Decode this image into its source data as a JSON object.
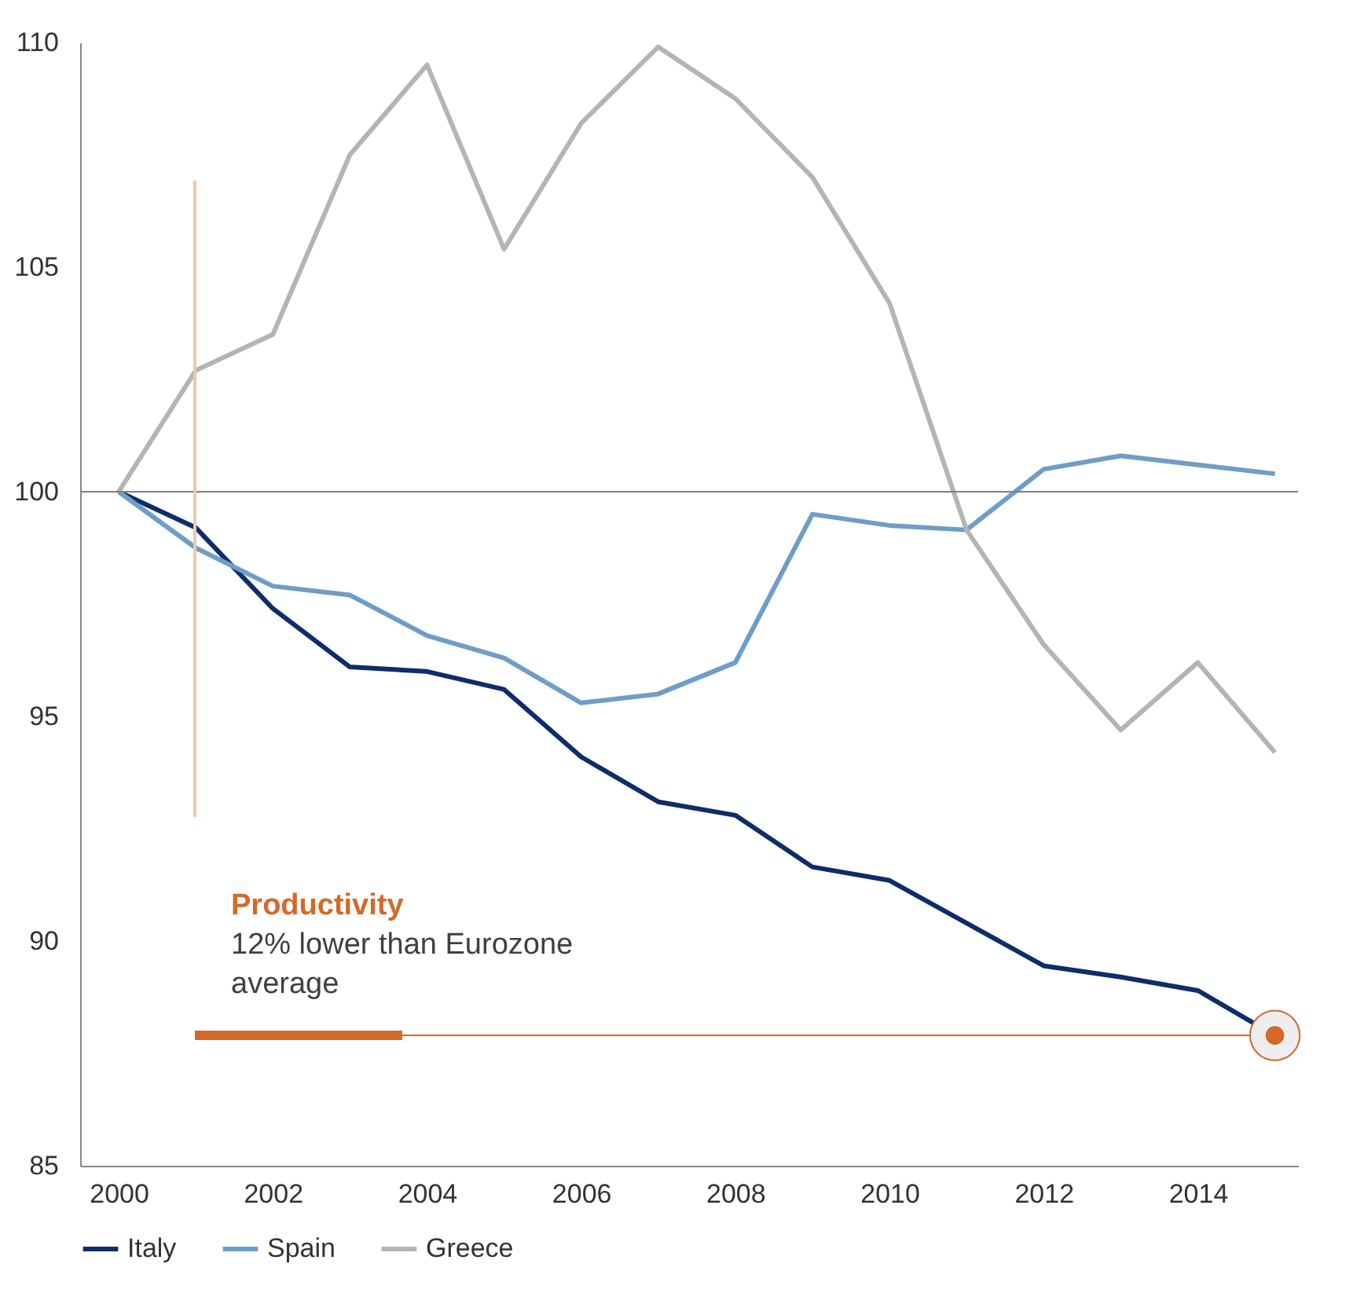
{
  "chart_data": {
    "type": "line",
    "x": [
      2000,
      2001,
      2002,
      2003,
      2004,
      2005,
      2006,
      2007,
      2008,
      2009,
      2010,
      2011,
      2012,
      2013,
      2014,
      2015
    ],
    "series": [
      {
        "name": "Italy",
        "color": "#0d2d6b",
        "values": [
          100,
          99.2,
          97.4,
          96.1,
          96.0,
          95.6,
          94.1,
          93.1,
          92.8,
          91.65,
          91.35,
          90.4,
          89.45,
          89.2,
          88.9,
          87.9
        ]
      },
      {
        "name": "Spain",
        "color": "#6e9ec8",
        "values": [
          100,
          98.75,
          97.9,
          97.7,
          96.8,
          96.3,
          95.3,
          95.5,
          96.2,
          99.5,
          99.25,
          99.15,
          100.5,
          100.8,
          100.6,
          100.4
        ]
      },
      {
        "name": "Greece",
        "color": "#b4b4b4",
        "values": [
          100,
          102.7,
          103.5,
          107.5,
          109.5,
          105.4,
          108.2,
          109.9,
          108.75,
          107.0,
          104.2,
          99.15,
          96.6,
          94.7,
          96.2,
          94.2
        ]
      },
      {
        "color": "#d4692a",
        "x": [
          2001,
          2015
        ],
        "values": [
          87.9,
          87.9
        ],
        "marker": "circle"
      }
    ],
    "xlim": [
      1999.5,
      2015.3
    ],
    "xticks": [
      2000,
      2002,
      2004,
      2006,
      2008,
      2010,
      2012,
      2014
    ],
    "ylim": [
      85,
      110
    ],
    "yticks": [
      85,
      90,
      95,
      100,
      105,
      110
    ],
    "ref_lines": [
      {
        "axis": "y",
        "value": 100,
        "color": "#808080"
      }
    ],
    "annotations": [
      "Productivity",
      "12% lower than Eurozone average"
    ],
    "grid": false,
    "legend": "bottom",
    "marker": "none",
    "line_style": "solid"
  }
}
